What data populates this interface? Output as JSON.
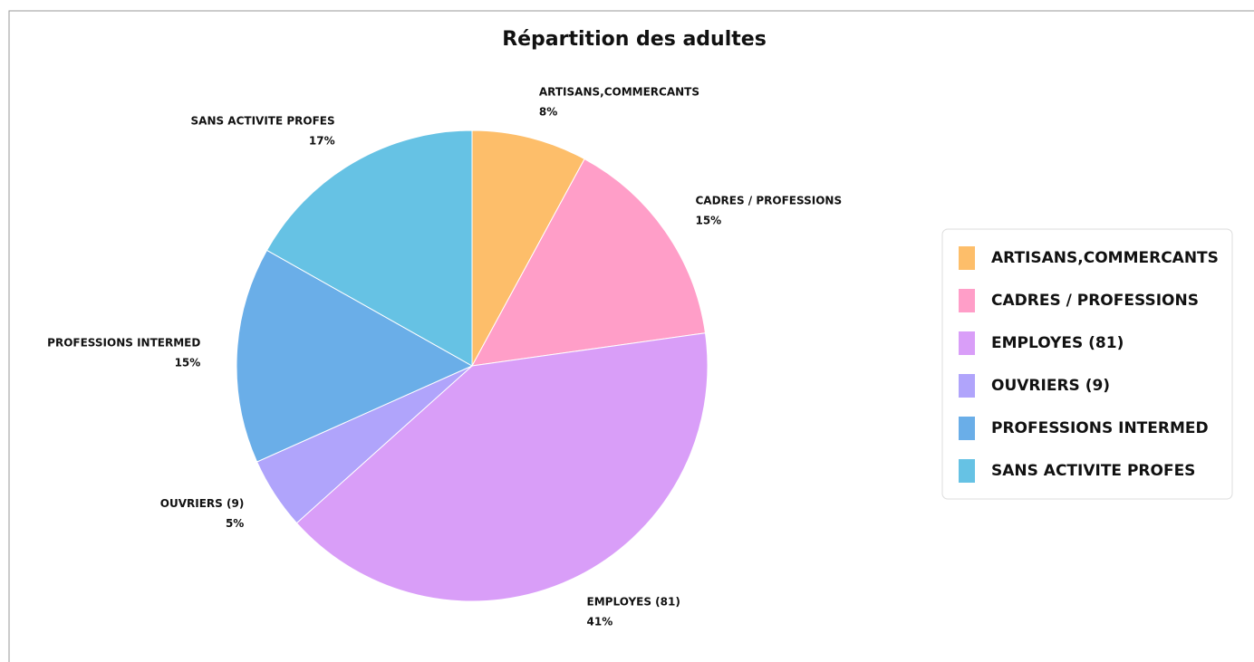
{
  "chart_data": {
    "type": "pie",
    "title": "Répartition des adultes",
    "categories": [
      "ARTISANS,COMMERCANTS",
      "CADRES / PROFESSIONS",
      "EMPLOYES (81)",
      "OUVRIERS (9)",
      "PROFESSIONS INTERMED",
      "SANS ACTIVITE PROFES"
    ],
    "values": [
      8,
      15,
      41,
      5,
      15,
      17
    ],
    "value_labels": [
      "8%",
      "15%",
      "41%",
      "5%",
      "15%",
      "17%"
    ],
    "colors": [
      "#fdbe6a",
      "#ff9ec8",
      "#d99ef8",
      "#b0a4fb",
      "#6aaee8",
      "#66c2e4"
    ],
    "legend": "right"
  }
}
